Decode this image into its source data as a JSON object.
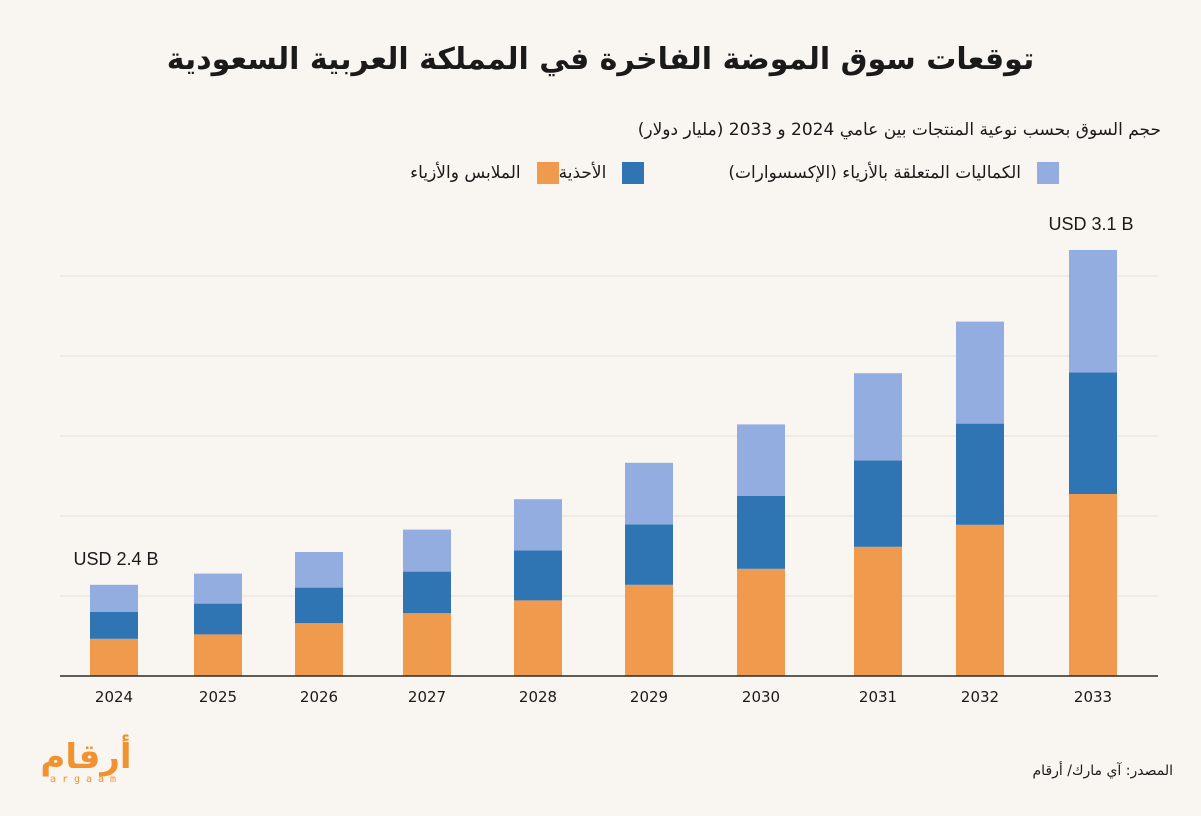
{
  "title": "توقعات سوق الموضة الفاخرة في المملكة العربية السعودية",
  "subtitle": "حجم السوق بحسب نوعية المنتجات بين عامي 2024 و 2033 (مليار دولار)",
  "source": "المصدر: آي مارك/ أرقام",
  "logo": {
    "arabic": "أرقام",
    "latin": "argaam"
  },
  "colors": {
    "clothing": "#f09a4e",
    "footwear": "#2f75b4",
    "accessories": "#93ade0",
    "background": "#f9f6f1",
    "grid": "#e2ddd6"
  },
  "chart_data": {
    "type": "bar",
    "stacked": true,
    "categories": [
      "2024",
      "2025",
      "2026",
      "2027",
      "2028",
      "2029",
      "2030",
      "2031",
      "2032",
      "2033"
    ],
    "series": [
      {
        "name": "الملابس والأزياء",
        "key": "clothing",
        "values": [
          0.93,
          1.04,
          1.32,
          1.57,
          1.89,
          2.28,
          2.68,
          3.23,
          3.78,
          4.55
        ]
      },
      {
        "name": "الأحذية",
        "key": "footwear",
        "values": [
          0.67,
          0.77,
          0.89,
          1.04,
          1.25,
          1.51,
          1.82,
          2.16,
          2.53,
          3.04
        ]
      },
      {
        "name": "الكماليات المتعلقة بالأزياء (الإكسسوارات)",
        "key": "accessories",
        "values": [
          0.68,
          0.75,
          0.89,
          1.05,
          1.28,
          1.54,
          1.79,
          2.18,
          2.55,
          3.06
        ]
      }
    ],
    "annotations": [
      {
        "category": "2024",
        "text": "USD 2.4 B"
      },
      {
        "category": "2033",
        "text": "USD 3.1 B"
      }
    ],
    "ylim": [
      0,
      11
    ],
    "grid_values": [
      2,
      4,
      6,
      8,
      10
    ],
    "grid": true,
    "xlabel": "",
    "ylabel": ""
  }
}
